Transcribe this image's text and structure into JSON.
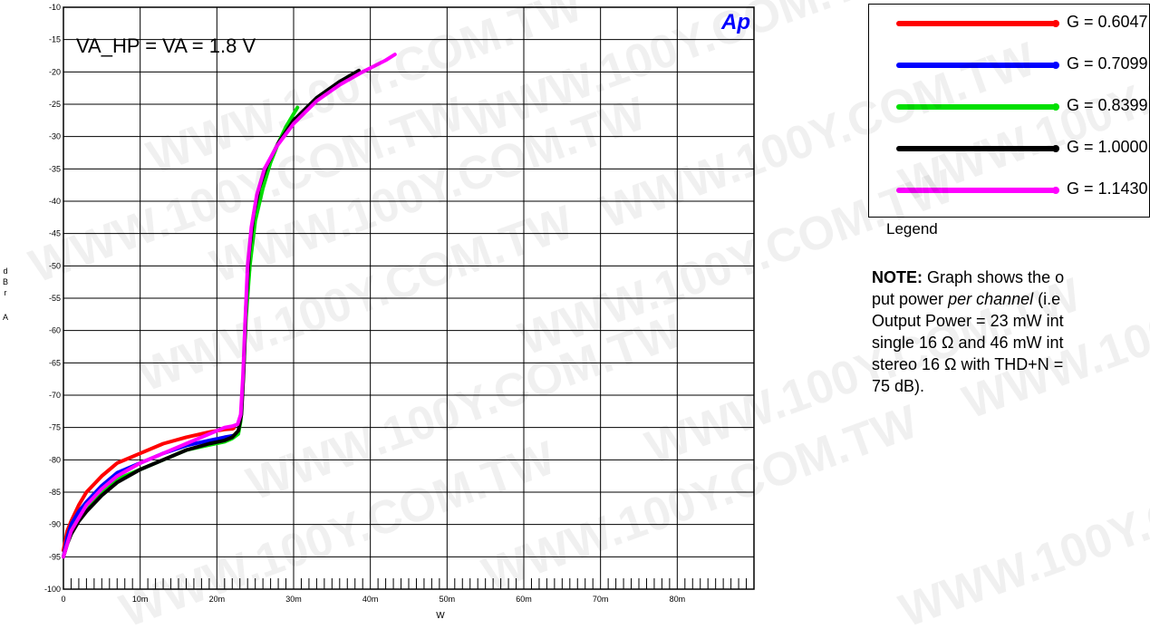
{
  "chart_data": {
    "type": "line",
    "title": "VA_HP = VA = 1.8 V",
    "xlabel": "W",
    "ylabel": "dBrA",
    "ylabel_chars": [
      "d",
      "B",
      "r",
      "A"
    ],
    "xlim": [
      0,
      0.09
    ],
    "ylim": [
      -100,
      -10
    ],
    "x_ticks": [
      0,
      0.01,
      0.02,
      0.03,
      0.04,
      0.05,
      0.06,
      0.07,
      0.08
    ],
    "x_tick_labels": [
      "0",
      "10m",
      "20m",
      "30m",
      "40m",
      "50m",
      "60m",
      "70m",
      "80m"
    ],
    "y_ticks": [
      -10,
      -15,
      -20,
      -25,
      -30,
      -35,
      -40,
      -45,
      -50,
      -55,
      -60,
      -65,
      -70,
      -75,
      -80,
      -85,
      -90,
      -95,
      -100
    ],
    "y_tick_labels": [
      "-10",
      "-15",
      "-20",
      "-25",
      "-30",
      "-35",
      "-40",
      "-45",
      "-50",
      "-55",
      "-60",
      "-65",
      "-70",
      "-75",
      "-80",
      "-85",
      "-90",
      "-95",
      "-100"
    ],
    "grid": true,
    "logo": "Ap",
    "series": [
      {
        "name": "G = 0.6047",
        "color": "#ff0000",
        "x": [
          0,
          0.0005,
          0.001,
          0.002,
          0.003,
          0.005,
          0.007,
          0.01,
          0.013,
          0.016,
          0.019,
          0.021,
          0.022,
          0.0222
        ],
        "y": [
          -94,
          -91,
          -89.5,
          -87,
          -85,
          -82.5,
          -80.5,
          -79,
          -77.5,
          -76.5,
          -75.7,
          -75.3,
          -75.2,
          -75.1
        ]
      },
      {
        "name": "G = 0.7099",
        "color": "#0000ff",
        "x": [
          0,
          0.0005,
          0.001,
          0.002,
          0.003,
          0.005,
          0.007,
          0.01,
          0.013,
          0.016,
          0.019,
          0.021,
          0.022,
          0.0225
        ],
        "y": [
          -95,
          -92,
          -90,
          -88,
          -86.5,
          -84,
          -82,
          -80.5,
          -79,
          -77.8,
          -77,
          -76.5,
          -76.3,
          -76.2
        ]
      },
      {
        "name": "G = 0.8399",
        "color": "#00e000",
        "x": [
          0,
          0.0005,
          0.001,
          0.002,
          0.003,
          0.005,
          0.007,
          0.01,
          0.013,
          0.016,
          0.019,
          0.021,
          0.022,
          0.0228,
          0.0231,
          0.0234,
          0.0238,
          0.0243,
          0.025,
          0.026,
          0.027,
          0.028,
          0.029,
          0.0305
        ],
        "y": [
          -95,
          -93,
          -91,
          -89,
          -87.5,
          -85,
          -83,
          -81.5,
          -80,
          -78.5,
          -77.7,
          -77.2,
          -76.7,
          -76,
          -74,
          -68,
          -58,
          -50,
          -43,
          -38,
          -34,
          -31,
          -28.5,
          -25.5
        ]
      },
      {
        "name": "G = 1.0000",
        "color": "#000000",
        "x": [
          0,
          0.0005,
          0.001,
          0.002,
          0.003,
          0.005,
          0.007,
          0.01,
          0.013,
          0.016,
          0.019,
          0.021,
          0.022,
          0.0228,
          0.0232,
          0.0235,
          0.0238,
          0.0242,
          0.0248,
          0.0255,
          0.0265,
          0.028,
          0.03,
          0.033,
          0.036,
          0.0385
        ],
        "y": [
          -95,
          -93,
          -91.5,
          -89.5,
          -88,
          -85.5,
          -83.5,
          -81.5,
          -80,
          -78.5,
          -77.5,
          -77,
          -76.5,
          -75.5,
          -73,
          -66,
          -56,
          -48,
          -42,
          -38,
          -34.5,
          -31,
          -27.5,
          -24,
          -21.5,
          -19.8
        ]
      },
      {
        "name": "G = 1.1430",
        "color": "#ff00ff",
        "x": [
          0,
          0.0005,
          0.001,
          0.002,
          0.003,
          0.005,
          0.007,
          0.01,
          0.013,
          0.016,
          0.019,
          0.021,
          0.022,
          0.0227,
          0.0231,
          0.0234,
          0.0237,
          0.024,
          0.0245,
          0.0252,
          0.0262,
          0.0278,
          0.03,
          0.033,
          0.036,
          0.039,
          0.042,
          0.0432
        ],
        "y": [
          -95,
          -93,
          -91,
          -89,
          -87,
          -84.5,
          -82.5,
          -80.5,
          -79,
          -77.5,
          -76,
          -75,
          -74.8,
          -74.5,
          -73,
          -67,
          -58,
          -50,
          -44,
          -39,
          -35,
          -31.5,
          -28,
          -24.5,
          -22,
          -20,
          -18.2,
          -17.3
        ]
      }
    ]
  },
  "legend": {
    "caption": "Legend",
    "items": [
      {
        "label": "G = 0.6047",
        "color": "#ff0000"
      },
      {
        "label": "G = 0.7099",
        "color": "#0000ff"
      },
      {
        "label": "G = 0.8399",
        "color": "#00e000"
      },
      {
        "label": "G = 1.0000",
        "color": "#000000"
      },
      {
        "label": "G = 1.1430",
        "color": "#ff00ff"
      }
    ]
  },
  "note": {
    "bold": "NOTE:",
    "line1_rest": " Graph shows the o",
    "line2_prefix": "put power ",
    "line2_italic": "per channel",
    "line2_rest": " (i.e",
    "line3": "Output Power = 23 mW int",
    "line4": "single 16 Ω and 46 mW int",
    "line5": "stereo 16 Ω with THD+N =",
    "line6": "75 dB)."
  },
  "watermark_text": "WWW.100Y.COM.TW"
}
